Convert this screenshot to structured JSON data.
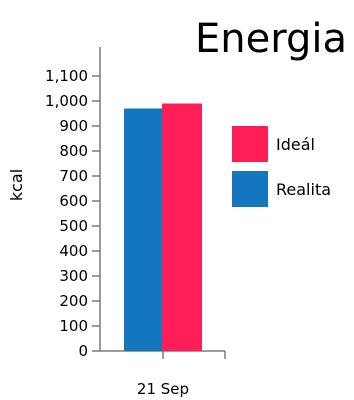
{
  "chart_data": {
    "type": "bar",
    "title": "Energia",
    "xlabel": "",
    "ylabel": "kcal",
    "categories": [
      "21 Sep"
    ],
    "series": [
      {
        "name": "Realita",
        "color": "#1477be",
        "values": [
          970
        ]
      },
      {
        "name": "Ideál",
        "color": "#ff1e58",
        "values": [
          990
        ]
      }
    ],
    "ylim": [
      0,
      1150
    ],
    "yticks": [
      0,
      100,
      200,
      300,
      400,
      500,
      600,
      700,
      800,
      900,
      1000,
      1100
    ],
    "ytick_labels": [
      "0",
      "100",
      "200",
      "300",
      "400",
      "500",
      "600",
      "700",
      "800",
      "900",
      "1,000",
      "1,100"
    ],
    "legend_position": "right",
    "legend_order": [
      "Ideál",
      "Realita"
    ],
    "grid": false
  }
}
